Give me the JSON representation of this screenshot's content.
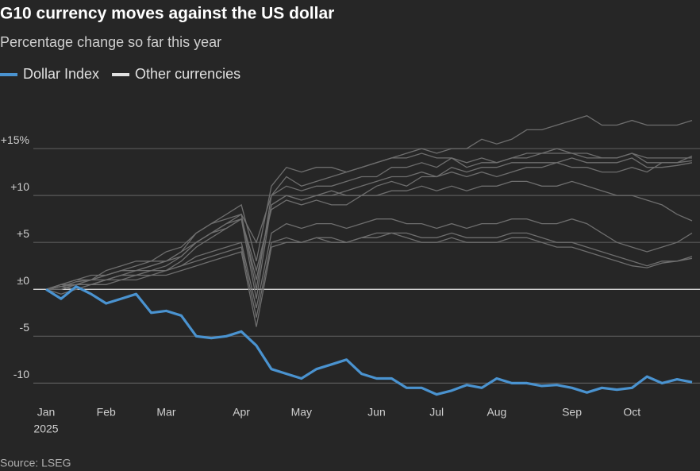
{
  "chart_data": {
    "type": "line",
    "title": "G10 currency moves against the US dollar",
    "subtitle": "Percentage change so far this year",
    "source": "Source: LSEG",
    "year_label": "2025",
    "categories": [
      "Jan",
      null,
      null,
      null,
      "Feb",
      null,
      null,
      null,
      "Mar",
      null,
      null,
      null,
      null,
      "Apr",
      null,
      null,
      null,
      "May",
      null,
      null,
      null,
      null,
      "Jun",
      null,
      null,
      null,
      "Jul",
      null,
      null,
      null,
      "Aug",
      null,
      null,
      null,
      null,
      "Sep",
      null,
      null,
      null,
      "Oct",
      null,
      null,
      null,
      null
    ],
    "ylim": [
      -12,
      20
    ],
    "yticks": [
      {
        "value": 15,
        "label": "+15%"
      },
      {
        "value": 10,
        "label": "+10"
      },
      {
        "value": 5,
        "label": "+5"
      },
      {
        "value": 0,
        "label": "±0"
      },
      -5,
      -10
    ],
    "grid": true,
    "series": [
      {
        "name": "Dollar Index",
        "color": "#4a93d0",
        "values": [
          0,
          -1,
          0.3,
          -0.5,
          -1.5,
          -1,
          -0.5,
          -2.5,
          -2.3,
          -2.8,
          -5,
          -5.2,
          -5,
          -4.5,
          -6,
          -8.5,
          -9,
          -9.5,
          -8.5,
          -8,
          -7.5,
          -9,
          -9.5,
          -9.5,
          -10.5,
          -10.5,
          -11.2,
          -10.8,
          -10.2,
          -10.5,
          -9.5,
          -10,
          -10,
          -10.3,
          -10.2,
          -10.5,
          -11,
          -10.5,
          -10.7,
          -10.5,
          -9.3,
          -10,
          -9.6,
          -9.9
        ]
      },
      {
        "name": "Other currencies",
        "color": "#6e6e6e",
        "values": [
          [
            0,
            0.5,
            1,
            1,
            2,
            2.5,
            3,
            3,
            4,
            4.5,
            6,
            7,
            7.5,
            8,
            5,
            10,
            12,
            11,
            11.5,
            12,
            12.5,
            13,
            13.5,
            14,
            14.5,
            15,
            14.5,
            15,
            15,
            16,
            15.5,
            16,
            17,
            17,
            17.5,
            18,
            18.5,
            17.5,
            17.5,
            18,
            17.5,
            17.5,
            17.5,
            18
          ],
          [
            0,
            0.3,
            0.5,
            1,
            1.5,
            2,
            2,
            2.5,
            3,
            4,
            6,
            7,
            8,
            9,
            3,
            11,
            13,
            12.5,
            13,
            13,
            12.5,
            13,
            13.5,
            14,
            14,
            14.5,
            14,
            14,
            13.5,
            14,
            13.5,
            14,
            14.5,
            14.5,
            15,
            14.5,
            14.5,
            14,
            14,
            14.5,
            14,
            14,
            14,
            14
          ],
          [
            0,
            -0.5,
            0,
            0.5,
            1,
            1.5,
            2,
            2,
            2.5,
            3.5,
            5,
            6,
            7,
            8,
            0,
            10,
            11,
            10.5,
            11,
            11,
            11.5,
            12,
            12,
            13,
            13,
            13.5,
            13,
            14,
            13,
            13.5,
            13.5,
            14,
            14,
            14.5,
            14.5,
            14.5,
            14,
            14,
            14,
            14.5,
            13.5,
            13.5,
            13.5,
            14.2
          ],
          [
            0,
            0,
            0.5,
            0.5,
            1,
            1.5,
            1.5,
            2,
            2,
            3,
            4.5,
            5.5,
            6.5,
            7.5,
            -1,
            9,
            10,
            9.5,
            10,
            10,
            10.5,
            11,
            11.5,
            12,
            12,
            12.5,
            12,
            13,
            12.5,
            13,
            13,
            13.5,
            13.5,
            13.5,
            13.5,
            14,
            13.5,
            13.5,
            13.5,
            14,
            13,
            13,
            13.2,
            13.5
          ],
          [
            0,
            0.5,
            1,
            1.5,
            1.5,
            2,
            2.5,
            3,
            3,
            4,
            5,
            6,
            6.5,
            7.5,
            2,
            8.5,
            9.5,
            9,
            9.5,
            9,
            9,
            10,
            10,
            10.5,
            10.5,
            11,
            10.5,
            11,
            10.5,
            11,
            11,
            11.5,
            11.5,
            11,
            11,
            11.5,
            11,
            10.5,
            10,
            10,
            9.5,
            9,
            8,
            7.3
          ],
          [
            0,
            0,
            0.5,
            0.5,
            1,
            1,
            1.5,
            1.5,
            2,
            2.5,
            3.5,
            4,
            4.5,
            5,
            -2,
            6,
            7,
            6.5,
            7,
            7,
            6.5,
            7,
            7.5,
            7.5,
            7,
            7,
            6.5,
            7,
            6.5,
            7,
            7,
            7.5,
            7.5,
            7,
            7,
            7.5,
            7,
            6,
            5,
            4.5,
            4,
            4.5,
            5,
            6
          ],
          [
            0,
            0.5,
            0.5,
            1,
            1,
            1.5,
            1.5,
            2,
            2,
            2.5,
            3,
            3.5,
            4,
            4.5,
            -3,
            5,
            5.5,
            5,
            5.5,
            5,
            5,
            5.5,
            5.5,
            6,
            6,
            5.5,
            5.5,
            6,
            5.5,
            5.5,
            5.5,
            6,
            6,
            5.5,
            5,
            5,
            4.5,
            4,
            3.5,
            3,
            2.5,
            3,
            3,
            3.5
          ],
          [
            0,
            0.3,
            0,
            0.5,
            0.5,
            1,
            1,
            1.5,
            1.5,
            2,
            2.5,
            3,
            3.5,
            4,
            -4,
            4.5,
            5,
            5,
            5.5,
            5.5,
            5,
            5.5,
            6,
            6,
            5.5,
            5,
            5,
            5.5,
            5,
            5,
            5,
            5.5,
            5.5,
            5,
            4.5,
            4.5,
            4,
            3.5,
            3,
            2.5,
            2.3,
            2.8,
            3,
            3.3
          ],
          [
            0,
            0.3,
            0.8,
            1,
            1.5,
            2,
            2,
            2.5,
            3,
            3.5,
            5,
            6,
            7,
            7.5,
            1,
            9,
            10,
            9.5,
            10,
            10.5,
            10,
            10,
            11,
            11.5,
            11,
            12,
            12,
            12.5,
            12,
            12.5,
            12,
            12.5,
            13,
            13,
            13.5,
            13,
            13,
            12.5,
            12.5,
            13,
            12.5,
            13.5,
            13.5,
            13.7
          ]
        ]
      }
    ]
  }
}
